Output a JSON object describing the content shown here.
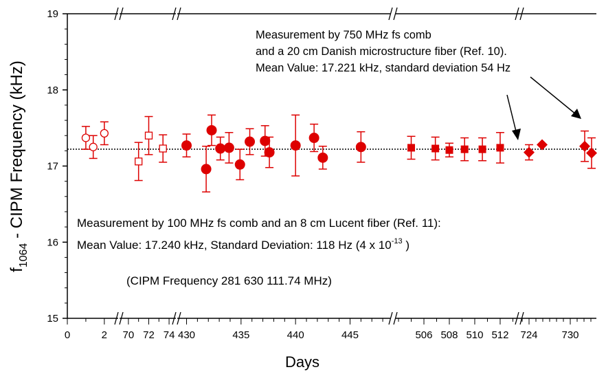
{
  "chart_data": {
    "type": "scatter",
    "ylabel_base": "f",
    "ylabel_sub": "1064",
    "ylabel_rest": " - CIPM Frequency (kHz)",
    "xlabel": "Days",
    "ylim": [
      15,
      19
    ],
    "y_ticks": [
      "19",
      "18",
      "17",
      "16",
      "15"
    ],
    "segments": [
      {
        "range": [
          0,
          2.6
        ],
        "ticks": [
          "0",
          "2"
        ]
      },
      {
        "range": [
          69.4,
          74.4
        ],
        "ticks": [
          "70",
          "72",
          "74"
        ]
      },
      {
        "range": [
          429.4,
          448.5
        ],
        "ticks": [
          "430",
          "435",
          "440",
          "445"
        ]
      },
      {
        "range": [
          504,
          513.3
        ],
        "ticks": [
          "506",
          "508",
          "510",
          "512"
        ]
      },
      {
        "range": [
          723,
          733.8
        ],
        "ticks": [
          "724",
          "730"
        ]
      }
    ],
    "mean_value": 17.221,
    "series": [
      {
        "marker": "open-circle",
        "color": "#dd0000",
        "points": [
          {
            "x": 1.0,
            "y": 17.37,
            "err": 0.15
          },
          {
            "x": 1.4,
            "y": 17.25,
            "err": 0.15
          },
          {
            "x": 2.0,
            "y": 17.43,
            "err": 0.15
          }
        ]
      },
      {
        "marker": "open-square",
        "color": "#dd0000",
        "points": [
          {
            "x": 71.0,
            "y": 17.06,
            "err": 0.25
          },
          {
            "x": 72.0,
            "y": 17.4,
            "err": 0.25
          },
          {
            "x": 73.4,
            "y": 17.23,
            "err": 0.18
          }
        ]
      },
      {
        "marker": "filled-circle",
        "color": "#dd0000",
        "points": [
          {
            "x": 430.0,
            "y": 17.27,
            "err": 0.15
          },
          {
            "x": 431.8,
            "y": 16.96,
            "err": 0.3
          },
          {
            "x": 432.3,
            "y": 17.47,
            "err": 0.2
          },
          {
            "x": 433.1,
            "y": 17.23,
            "err": 0.15
          },
          {
            "x": 433.9,
            "y": 17.24,
            "err": 0.2
          },
          {
            "x": 434.9,
            "y": 17.02,
            "err": 0.2
          },
          {
            "x": 435.8,
            "y": 17.32,
            "err": 0.17
          },
          {
            "x": 437.2,
            "y": 17.33,
            "err": 0.2
          },
          {
            "x": 437.6,
            "y": 17.18,
            "err": 0.2
          },
          {
            "x": 440.0,
            "y": 17.27,
            "err": 0.4
          },
          {
            "x": 441.7,
            "y": 17.37,
            "err": 0.18
          },
          {
            "x": 442.5,
            "y": 17.11,
            "err": 0.15
          },
          {
            "x": 446.0,
            "y": 17.25,
            "err": 0.2
          }
        ]
      },
      {
        "marker": "filled-square",
        "color": "#dd0000",
        "points": [
          {
            "x": 505.0,
            "y": 17.24,
            "err": 0.15
          },
          {
            "x": 506.9,
            "y": 17.23,
            "err": 0.15
          },
          {
            "x": 508.0,
            "y": 17.21,
            "err": 0.09
          },
          {
            "x": 509.2,
            "y": 17.22,
            "err": 0.15
          },
          {
            "x": 510.6,
            "y": 17.22,
            "err": 0.15
          },
          {
            "x": 512.0,
            "y": 17.24,
            "err": 0.2
          }
        ]
      },
      {
        "marker": "filled-diamond",
        "color": "#dd0000",
        "points": [
          {
            "x": 724.0,
            "y": 17.18,
            "err": 0.1
          },
          {
            "x": 725.9,
            "y": 17.28,
            "err": 0.0
          },
          {
            "x": 732.1,
            "y": 17.26,
            "err": 0.2
          },
          {
            "x": 733.1,
            "y": 17.17,
            "err": 0.2
          }
        ]
      }
    ],
    "annotations": {
      "upper": [
        "Measurement by 750 MHz fs comb",
        "and a 20 cm Danish microstructure fiber (Ref. 10).",
        "Mean Value: 17.221 kHz, standard deviation 54 Hz"
      ],
      "lower_1": "Measurement by 100 MHz fs comb and an 8 cm Lucent fiber (Ref. 11):",
      "lower_2_a": "Mean Value:  17.240 kHz,  Standard Deviation:  118 Hz  (4 x 10",
      "lower_2_exp": "-13",
      "lower_2_b": " )",
      "lower_color": "#990099",
      "cipm": "(CIPM Frequency 281 630 111.74 MHz)"
    }
  }
}
